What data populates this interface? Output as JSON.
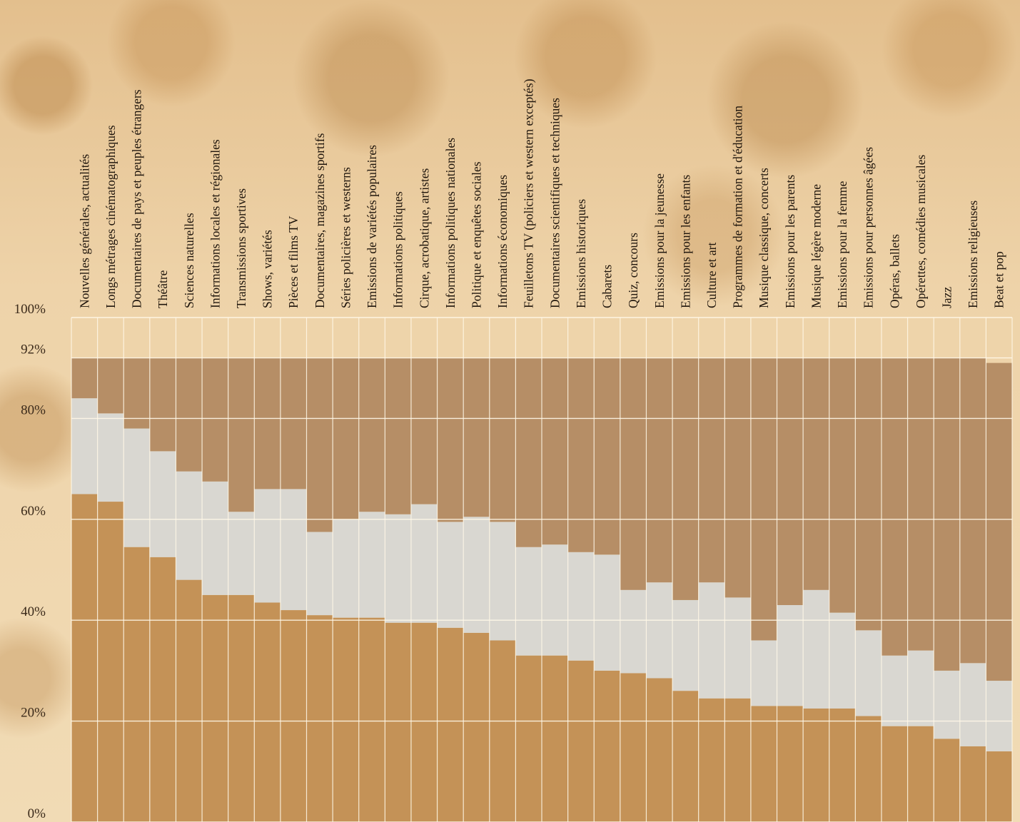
{
  "chart_data": {
    "type": "bar",
    "stacked": true,
    "orientation": "vertical",
    "ylim": [
      0,
      100
    ],
    "yticks": [
      "100%",
      "92%",
      "80%",
      "60%",
      "40%",
      "20%",
      "0%"
    ],
    "ytick_values": [
      100,
      92,
      80,
      60,
      40,
      20,
      0
    ],
    "grid": true,
    "categories": [
      "Nouvelles générales, actualités",
      "Longs métrages cinématographiques",
      "Documentaires de pays et peuples étrangers",
      "Théâtre",
      "Sciences naturelles",
      "Informations locales et régionales",
      "Transmissions sportives",
      "Shows, variétés",
      "Pièces et films TV",
      "Documentaires, magazines sportifs",
      "Séries policières et westerns",
      "Emissions de variétés populaires",
      "Informations politiques",
      "Cirque, acrobatique, artistes",
      "Informations politiques nationales",
      "Politique et enquêtes sociales",
      "Informations économiques",
      "Feuilletons TV (policiers et western exceptés)",
      "Documentaires scientifiques et techniques",
      "Emissions historiques",
      "Cabarets",
      "Quiz, concours",
      "Emissions pour la jeunesse",
      "Emissions pour les enfants",
      "Culture et art",
      "Programmes de formation et d'éducation",
      "Musique classique, concerts",
      "Emissions pour les parents",
      "Musique légère moderne",
      "Emissions pour la femme",
      "Emissions pour personnes âgées",
      "Opéras, ballets",
      "Opérettes, comédies musicales",
      "Jazz",
      "Emissions religieuses",
      "Beat et pop"
    ],
    "series": [
      {
        "color": "#c49257",
        "values": [
          65,
          63.5,
          54.5,
          52.5,
          48,
          45,
          45,
          43.5,
          42,
          41,
          40.5,
          40.5,
          39.5,
          39.5,
          38.5,
          37.5,
          36,
          33,
          33,
          32,
          30,
          29.5,
          28.5,
          26,
          24.5,
          24.5,
          23,
          23,
          22.5,
          22.5,
          21,
          19,
          19,
          16.5,
          15,
          14
        ]
      },
      {
        "color": "#d9d7d1",
        "values": [
          19,
          17.5,
          23.5,
          21,
          21.5,
          22.5,
          16.5,
          22.5,
          24,
          16.5,
          19.5,
          21,
          21.5,
          23.5,
          21,
          23,
          23.5,
          21.5,
          22,
          21.5,
          23,
          16.5,
          19,
          18,
          23,
          20,
          13,
          20,
          23.5,
          19,
          17,
          14,
          15,
          13.5,
          16.5,
          14
        ]
      },
      {
        "color": "#b68e66",
        "values": [
          8,
          11,
          14,
          18.5,
          22.5,
          24.5,
          30.5,
          26,
          26,
          34.5,
          32,
          30.5,
          31,
          29,
          32.5,
          31.5,
          32.5,
          37.5,
          37,
          38.5,
          39,
          46,
          44.5,
          48,
          44.5,
          47.5,
          56,
          49,
          46,
          50.5,
          54,
          59,
          58,
          62,
          60.5,
          63
        ]
      }
    ]
  }
}
